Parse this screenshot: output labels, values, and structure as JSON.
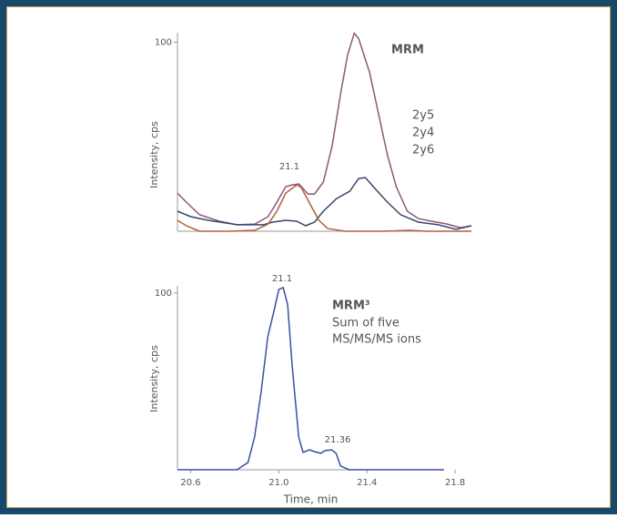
{
  "chart_data": [
    {
      "type": "line",
      "title": "MRM",
      "y_label": "Intensity, cps",
      "ylim": [
        0,
        105
      ],
      "yticks": [
        100
      ],
      "xlim": [
        20.6,
        21.93
      ],
      "annotations": [
        "21.1"
      ],
      "series": [
        {
          "name": "2y5",
          "color": "#8a5878",
          "x": [
            20.6,
            20.64,
            20.7,
            20.79,
            20.87,
            20.95,
            21.01,
            21.05,
            21.09,
            21.12,
            21.15,
            21.19,
            21.22,
            21.26,
            21.3,
            21.34,
            21.37,
            21.4,
            21.42,
            21.47,
            21.51,
            21.55,
            21.59,
            21.64,
            21.69,
            21.75,
            21.82,
            21.88,
            21.93
          ],
          "values": [
            20.2,
            15.4,
            8.7,
            5.3,
            3.4,
            3.8,
            7.7,
            15.4,
            23.6,
            24.5,
            25,
            19.7,
            19.7,
            26,
            45.2,
            74,
            93.3,
            104.8,
            101.9,
            83.7,
            62,
            40.4,
            23.6,
            10.6,
            6.7,
            5.3,
            3.8,
            1.9,
            2.9
          ]
        },
        {
          "name": "2y4",
          "color": "#3d4470",
          "x": [
            20.6,
            20.66,
            20.74,
            20.87,
            20.99,
            21.03,
            21.09,
            21.14,
            21.18,
            21.22,
            21.26,
            21.32,
            21.38,
            21.42,
            21.45,
            21.49,
            21.55,
            21.61,
            21.69,
            21.78,
            21.86,
            21.93
          ],
          "values": [
            10.6,
            7.7,
            5.8,
            3.4,
            3.4,
            4.8,
            5.8,
            5.3,
            2.9,
            4.8,
            10.6,
            17.3,
            21.2,
            27.9,
            28.4,
            23.1,
            15.4,
            8.7,
            4.8,
            3.4,
            1,
            2.9
          ]
        },
        {
          "name": "2y6",
          "color": "#b0603a",
          "x": [
            20.6,
            20.64,
            20.7,
            20.83,
            20.95,
            21.01,
            21.05,
            21.09,
            21.14,
            21.16,
            21.2,
            21.24,
            21.28,
            21.36,
            21.53,
            21.65,
            21.73,
            21.86,
            21.93
          ],
          "values": [
            5.8,
            2.9,
            0,
            0,
            0.5,
            3.8,
            10.6,
            20.2,
            24.5,
            23.1,
            14.4,
            5.8,
            1.4,
            0,
            0,
            0.5,
            0,
            0,
            0
          ]
        }
      ]
    },
    {
      "type": "line",
      "title": "MRM³",
      "subtitle": [
        "Sum of five",
        "MS/MS/MS ions"
      ],
      "y_label": "Intensity, cps",
      "x_label": "Time, min",
      "ylim": [
        0,
        104
      ],
      "yticks": [
        100
      ],
      "xlim": [
        20.54,
        21.75
      ],
      "xticks": [
        20.6,
        {
          "value": 21,
          "label": "21.0"
        },
        21.4,
        21.8
      ],
      "annotations": [
        "21.1",
        "21.36"
      ],
      "series": [
        {
          "color": "#3a4fa0",
          "x": [
            20.54,
            20.81,
            20.86,
            20.89,
            20.92,
            20.95,
            20.98,
            21.0,
            21.02,
            21.04,
            21.06,
            21.09,
            21.11,
            21.14,
            21.16,
            21.19,
            21.21,
            21.24,
            21.26,
            21.28,
            21.32,
            21.75
          ],
          "values": [
            0,
            0,
            4.1,
            18.6,
            44.3,
            75.3,
            90.7,
            102,
            103,
            93.3,
            59.8,
            18.6,
            9.8,
            11.3,
            10.3,
            9.3,
            10.8,
            11.3,
            9.3,
            2.1,
            0,
            0
          ]
        }
      ]
    }
  ]
}
